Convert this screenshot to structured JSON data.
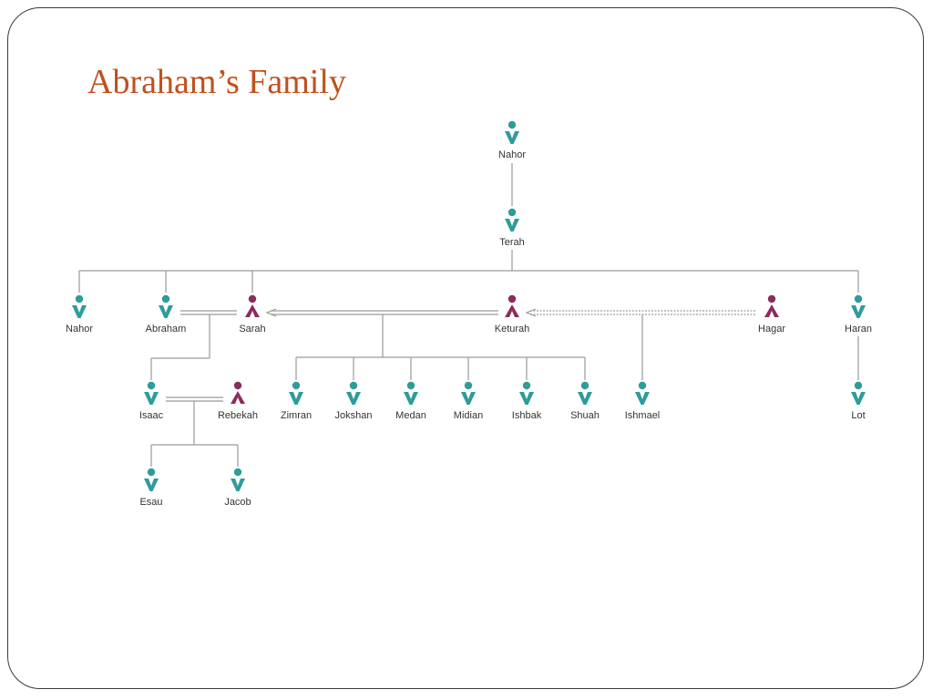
{
  "slide": {
    "title": "Abraham’s Family"
  },
  "colors": {
    "male": "#2e9c9a",
    "female": "#8c2c5c",
    "title": "#c0501e",
    "line": "#9a9a9a",
    "label": "#333333"
  },
  "people": {
    "nahor_gf": {
      "name": "Nahor",
      "sex": "male"
    },
    "terah": {
      "name": "Terah",
      "sex": "male"
    },
    "nahor": {
      "name": "Nahor",
      "sex": "male"
    },
    "abraham": {
      "name": "Abraham",
      "sex": "male"
    },
    "sarah": {
      "name": "Sarah",
      "sex": "female"
    },
    "keturah": {
      "name": "Keturah",
      "sex": "female"
    },
    "hagar": {
      "name": "Hagar",
      "sex": "female"
    },
    "haran": {
      "name": "Haran",
      "sex": "male"
    },
    "isaac": {
      "name": "Isaac",
      "sex": "male"
    },
    "rebekah": {
      "name": "Rebekah",
      "sex": "female"
    },
    "zimran": {
      "name": "Zimran",
      "sex": "male"
    },
    "jokshan": {
      "name": "Jokshan",
      "sex": "male"
    },
    "medan": {
      "name": "Medan",
      "sex": "male"
    },
    "midian": {
      "name": "Midian",
      "sex": "male"
    },
    "ishbak": {
      "name": "Ishbak",
      "sex": "male"
    },
    "shuah": {
      "name": "Shuah",
      "sex": "male"
    },
    "ishmael": {
      "name": "Ishmael",
      "sex": "male"
    },
    "lot": {
      "name": "Lot",
      "sex": "male"
    },
    "esau": {
      "name": "Esau",
      "sex": "male"
    },
    "jacob": {
      "name": "Jacob",
      "sex": "male"
    }
  }
}
